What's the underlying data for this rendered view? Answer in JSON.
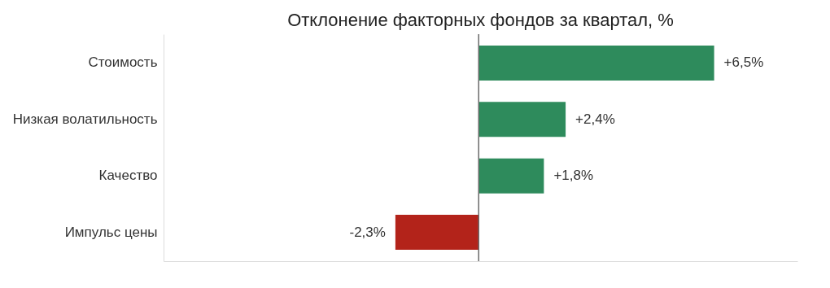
{
  "chart_data": {
    "type": "bar",
    "orientation": "horizontal",
    "title": "Отклонение факторных фондов за квартал, %",
    "categories": [
      "Стоимость",
      "Низкая волатильность",
      "Качество",
      "Импульс цены"
    ],
    "values": [
      6.5,
      2.4,
      1.8,
      -2.3
    ],
    "colors": [
      "#2e8b5c",
      "#2e8b5c",
      "#2e8b5c",
      "#b3231a"
    ],
    "value_labels": [
      "+6,5%",
      "+2,4%",
      "+1,8%",
      "-2,3%"
    ],
    "xlim": [
      -8.7,
      8.8
    ],
    "ref_lines": [
      {
        "axis": "x",
        "value": 0,
        "color": "#6b6b6b"
      }
    ]
  }
}
